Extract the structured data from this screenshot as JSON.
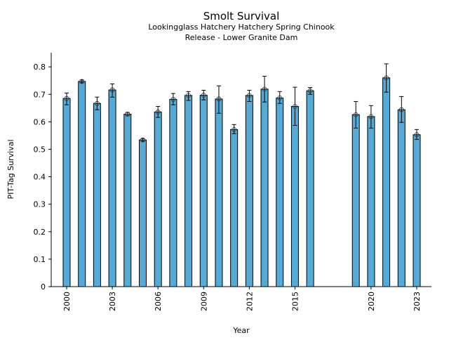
{
  "chart_data": {
    "type": "bar",
    "title": "Smolt Survival",
    "subtitle_lines": [
      "Lookingglass Hatchery Hatchery Spring Chinook",
      "Release - Lower Granite Dam"
    ],
    "xlabel": "Year",
    "ylabel": "PIT-Tag Survival",
    "ylim": [
      0,
      0.85
    ],
    "xlim": [
      1999,
      2024
    ],
    "x_ticks": [
      2000,
      2003,
      2006,
      2009,
      2012,
      2015,
      2020,
      2023
    ],
    "y_ticks": [
      "0",
      "0.1",
      "0.2",
      "0.3",
      "0.4",
      "0.5",
      "0.6",
      "0.7",
      "0.8"
    ],
    "grid": false,
    "bar_color": "#56aad6",
    "x": [
      2000,
      2001,
      2002,
      2003,
      2004,
      2005,
      2006,
      2007,
      2008,
      2009,
      2010,
      2011,
      2012,
      2013,
      2014,
      2015,
      2016,
      2019,
      2020,
      2021,
      2022,
      2023
    ],
    "values": [
      0.685,
      0.747,
      0.667,
      0.716,
      0.628,
      0.534,
      0.636,
      0.682,
      0.696,
      0.697,
      0.683,
      0.572,
      0.696,
      0.719,
      0.687,
      0.656,
      0.713,
      0.626,
      0.619,
      0.76,
      0.644,
      0.553
    ],
    "error_low": [
      0.662,
      0.742,
      0.644,
      0.69,
      0.622,
      0.529,
      0.616,
      0.662,
      0.678,
      0.68,
      0.631,
      0.557,
      0.674,
      0.672,
      0.667,
      0.587,
      0.7,
      0.577,
      0.577,
      0.708,
      0.598,
      0.536
    ],
    "error_high": [
      0.705,
      0.752,
      0.69,
      0.738,
      0.634,
      0.539,
      0.656,
      0.703,
      0.71,
      0.715,
      0.731,
      0.59,
      0.715,
      0.766,
      0.71,
      0.726,
      0.725,
      0.674,
      0.659,
      0.811,
      0.692,
      0.572
    ]
  }
}
